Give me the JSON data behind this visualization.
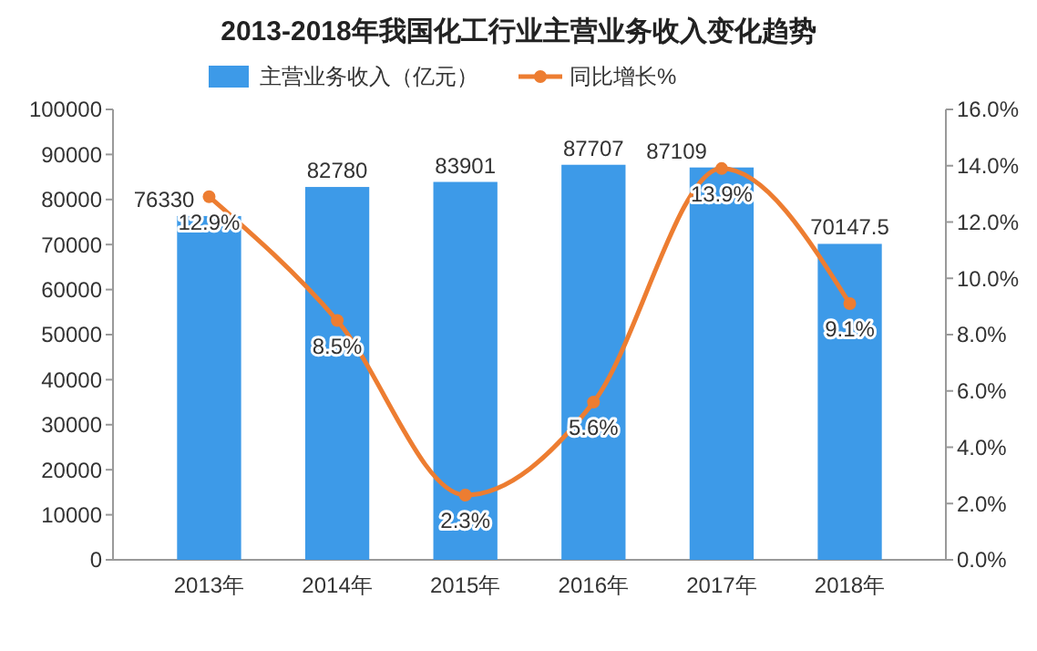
{
  "chart_data": {
    "type": "bar",
    "title": "2013-2018年我国化工行业主营业务收入变化趋势",
    "categories": [
      "2013年",
      "2014年",
      "2015年",
      "2016年",
      "2017年",
      "2018年"
    ],
    "series": [
      {
        "name": "主营业务收入（亿元）",
        "color": "#3d9ae8",
        "values": [
          76330,
          82780,
          83901,
          87707,
          87109,
          70147.5
        ],
        "value_labels": [
          "76330",
          "82780",
          "83901",
          "87707",
          "87109",
          "70147.5"
        ]
      },
      {
        "name": "同比增长%",
        "type": "line",
        "axis": "y2",
        "color": "#ed7d31",
        "marker": "circle",
        "values": [
          12.9,
          8.5,
          2.3,
          5.6,
          13.9,
          9.1
        ],
        "value_labels": [
          "12.9%",
          "8.5%",
          "2.3%",
          "5.6%",
          "13.9%",
          "9.1%"
        ]
      }
    ],
    "ylim": [
      0,
      100000
    ],
    "yticks": [
      0,
      10000,
      20000,
      30000,
      40000,
      50000,
      60000,
      70000,
      80000,
      90000,
      100000
    ],
    "y2lim": [
      0,
      16
    ],
    "y2ticks": [
      {
        "value": 0,
        "label": "0.0%"
      },
      {
        "value": 2,
        "label": "2.0%"
      },
      {
        "value": 4,
        "label": "4.0%"
      },
      {
        "value": 6,
        "label": "6.0%"
      },
      {
        "value": 8,
        "label": "8.0%"
      },
      {
        "value": 10,
        "label": "10.0%"
      },
      {
        "value": 12,
        "label": "12.0%"
      },
      {
        "value": 14,
        "label": "14.0%"
      },
      {
        "value": 16,
        "label": "16.0%"
      }
    ],
    "legend": "top",
    "grid": false
  }
}
